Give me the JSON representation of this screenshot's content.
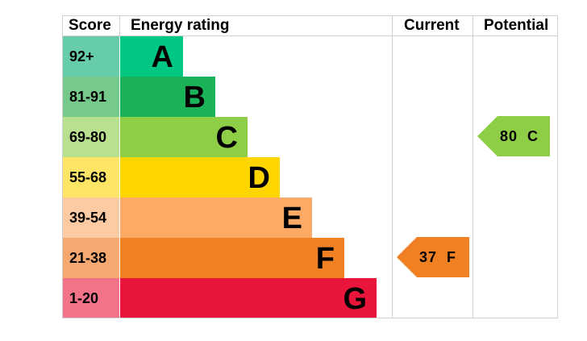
{
  "headers": {
    "score": "Score",
    "energy_rating": "Energy rating",
    "current": "Current",
    "potential": "Potential"
  },
  "bands": [
    {
      "score": "92+",
      "letter": "A",
      "color": "#00c781",
      "score_color": "#66ccaa"
    },
    {
      "score": "81-91",
      "letter": "B",
      "color": "#1bb35a",
      "score_color": "#74c98b"
    },
    {
      "score": "69-80",
      "letter": "C",
      "color": "#8dce46",
      "score_color": "#b9e08e"
    },
    {
      "score": "55-68",
      "letter": "D",
      "color": "#ffd500",
      "score_color": "#ffe566"
    },
    {
      "score": "39-54",
      "letter": "E",
      "color": "#fcaa65",
      "score_color": "#fdcba3"
    },
    {
      "score": "21-38",
      "letter": "F",
      "color": "#ef8023",
      "score_color": "#f5a970"
    },
    {
      "score": "1-20",
      "letter": "G",
      "color": "#e9153b",
      "score_color": "#f27389"
    }
  ],
  "current": {
    "value": "37",
    "letter": "F",
    "band": "F",
    "color": "#ef8023"
  },
  "potential": {
    "value": "80",
    "letter": "C",
    "band": "C",
    "color": "#8dce46"
  }
}
